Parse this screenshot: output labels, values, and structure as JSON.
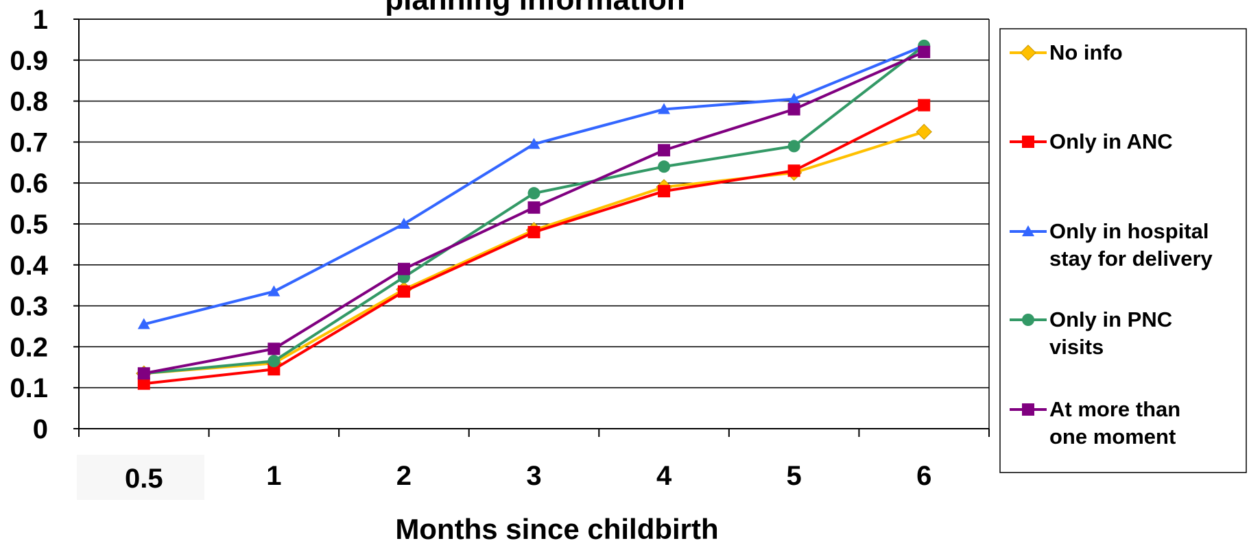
{
  "chart_data": {
    "type": "line",
    "title": "planning information",
    "xlabel": "Months since childbirth",
    "ylabel": "",
    "categories": [
      "0.5",
      "1",
      "2",
      "3",
      "4",
      "5",
      "6"
    ],
    "ylim": [
      0,
      1
    ],
    "yticks": [
      "0",
      "0.1",
      "0.2",
      "0.3",
      "0.4",
      "0.5",
      "0.6",
      "0.7",
      "0.8",
      "0.9",
      "1"
    ],
    "grid": true,
    "legend_position": "right",
    "series": [
      {
        "name": "No info",
        "color": "#FFC000",
        "marker": "diamond",
        "values": [
          0.135,
          0.16,
          0.34,
          0.485,
          0.59,
          0.625,
          0.725
        ],
        "legend_lines": [
          "No info"
        ]
      },
      {
        "name": "Only in ANC",
        "color": "#FF0000",
        "marker": "square",
        "values": [
          0.11,
          0.145,
          0.335,
          0.48,
          0.58,
          0.63,
          0.79
        ],
        "legend_lines": [
          "Only in ANC"
        ]
      },
      {
        "name": "Only in hospital stay for delivery",
        "color": "#3366FF",
        "marker": "triangle",
        "values": [
          0.255,
          0.335,
          0.5,
          0.695,
          0.78,
          0.805,
          0.935
        ],
        "legend_lines": [
          "Only in hospital",
          "stay for delivery"
        ]
      },
      {
        "name": "Only in PNC visits",
        "color": "#339966",
        "marker": "circle",
        "values": [
          0.135,
          0.165,
          0.37,
          0.575,
          0.64,
          0.69,
          0.935
        ],
        "legend_lines": [
          "Only in PNC",
          "visits"
        ]
      },
      {
        "name": "At more than one moment",
        "color": "#800080",
        "marker": "square",
        "values": [
          0.135,
          0.195,
          0.39,
          0.54,
          0.68,
          0.78,
          0.92
        ],
        "legend_lines": [
          "At more than",
          "one moment"
        ]
      }
    ]
  }
}
